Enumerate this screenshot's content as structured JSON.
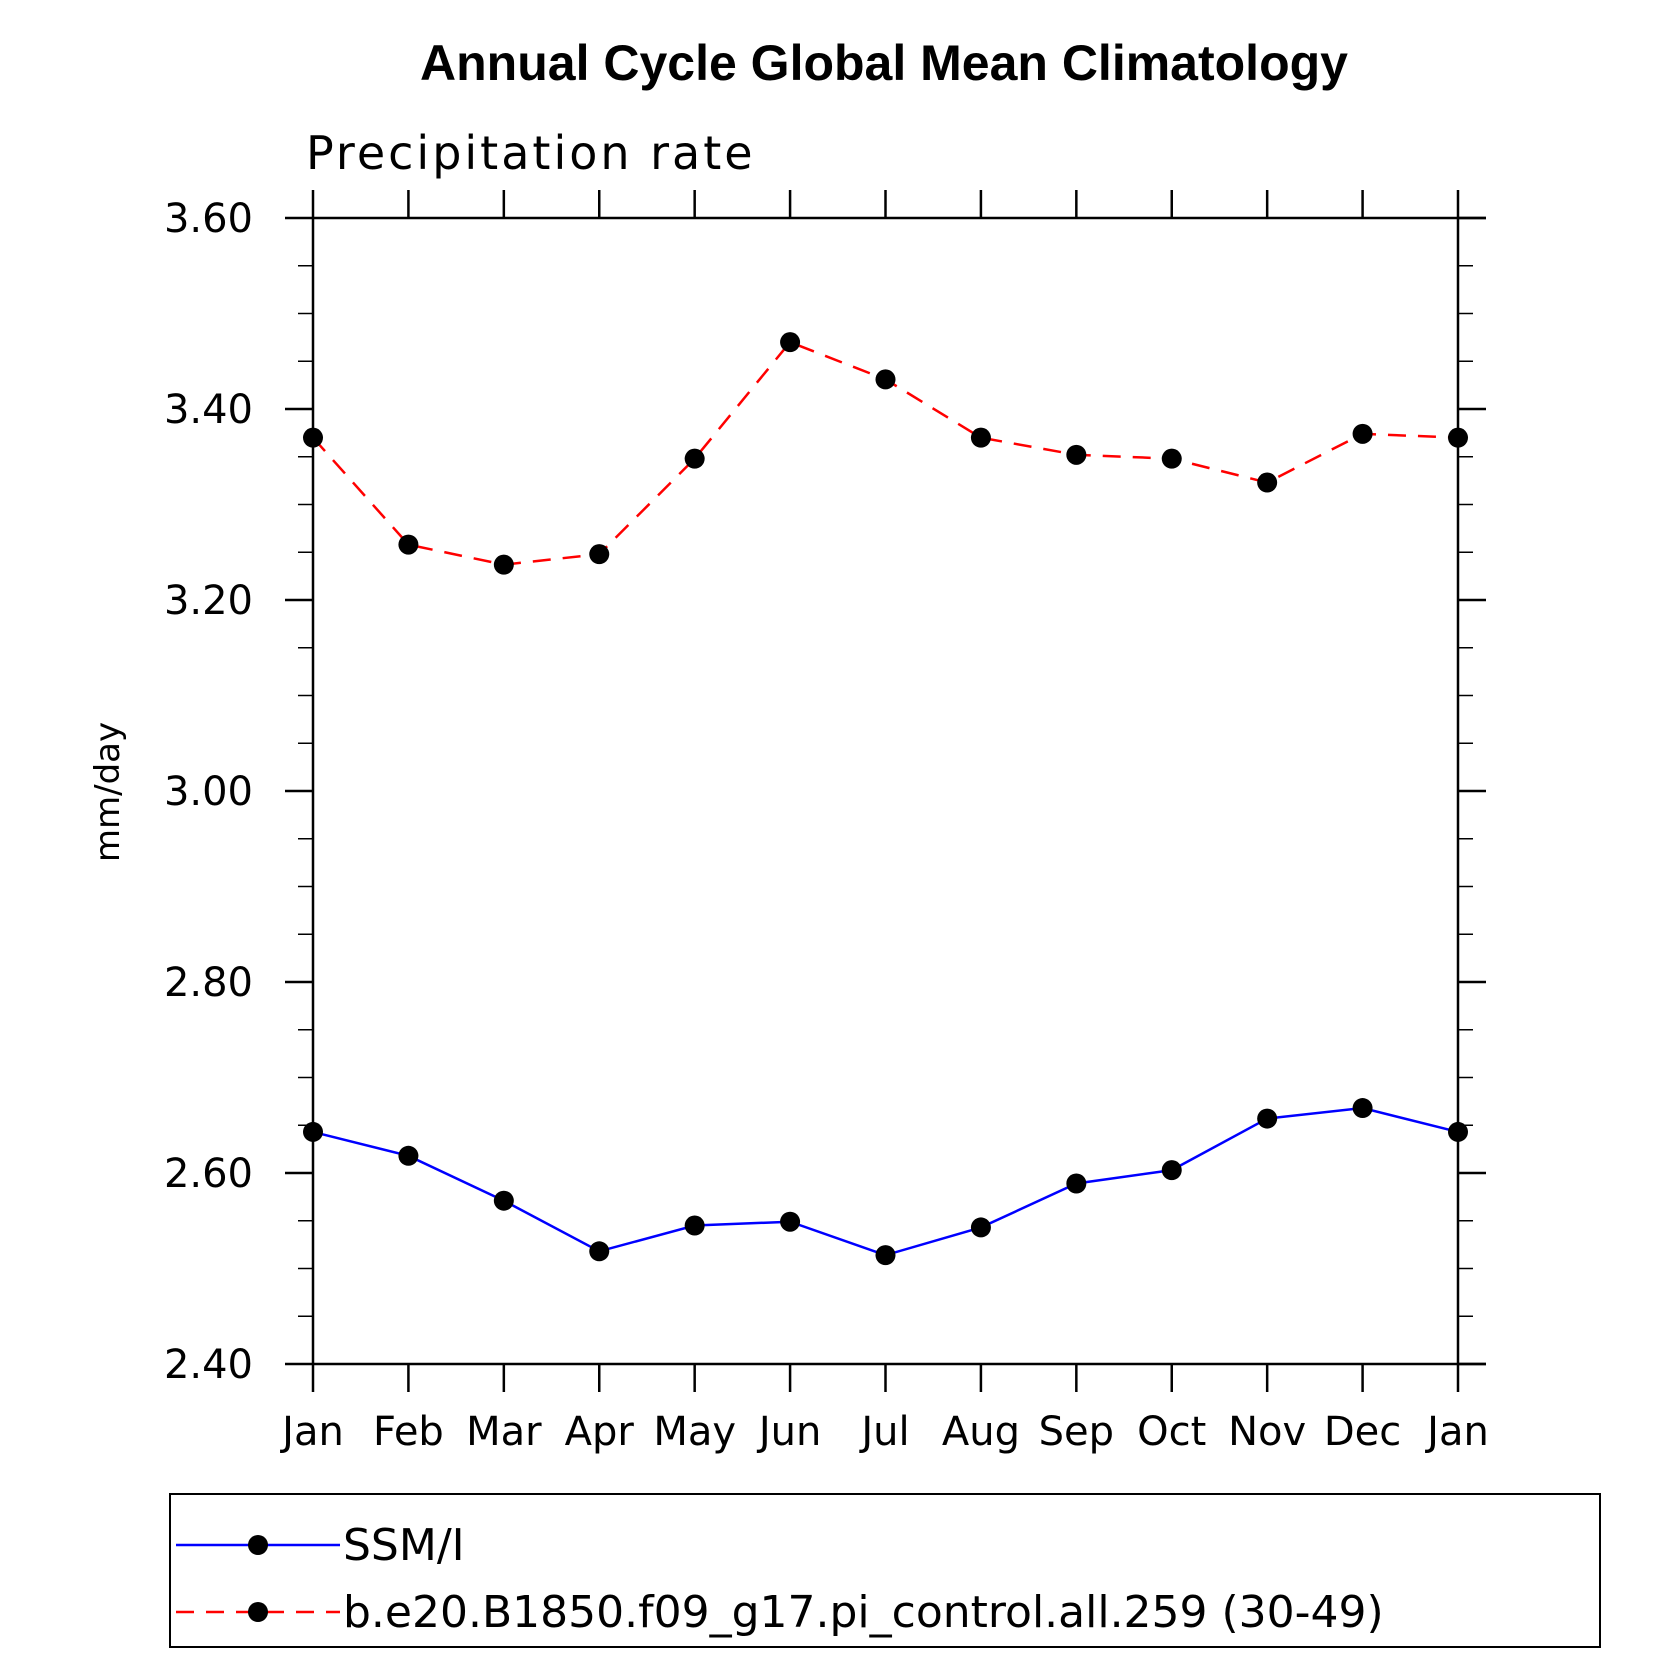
{
  "chart_data": {
    "type": "line",
    "title": "Annual Cycle Global Mean Climatology",
    "subtitle": "Precipitation rate",
    "xlabel": "",
    "ylabel": "mm/day",
    "categories": [
      "Jan",
      "Feb",
      "Mar",
      "Apr",
      "May",
      "Jun",
      "Jul",
      "Aug",
      "Sep",
      "Oct",
      "Nov",
      "Dec",
      "Jan"
    ],
    "ylim": [
      2.4,
      3.6
    ],
    "yticks": [
      2.4,
      2.6,
      2.8,
      3.0,
      3.2,
      3.4,
      3.6
    ],
    "ytick_labels": [
      "2.40",
      "2.60",
      "2.80",
      "3.00",
      "3.20",
      "3.40",
      "3.60"
    ],
    "grid": false,
    "legend_position": "bottom",
    "series": [
      {
        "name": "SSM/I",
        "color": "#0000ff",
        "dash": "solid",
        "marker": "circle",
        "values": [
          2.643,
          2.618,
          2.571,
          2.518,
          2.545,
          2.549,
          2.514,
          2.543,
          2.589,
          2.603,
          2.657,
          2.668,
          2.643
        ]
      },
      {
        "name": "b.e20.B1850.f09_g17.pi_control.all.259 (30-49)",
        "color": "#ff0000",
        "dash": "dashed",
        "marker": "circle",
        "values": [
          3.37,
          3.258,
          3.237,
          3.248,
          3.348,
          3.47,
          3.431,
          3.37,
          3.352,
          3.348,
          3.323,
          3.374,
          3.37
        ]
      }
    ]
  }
}
